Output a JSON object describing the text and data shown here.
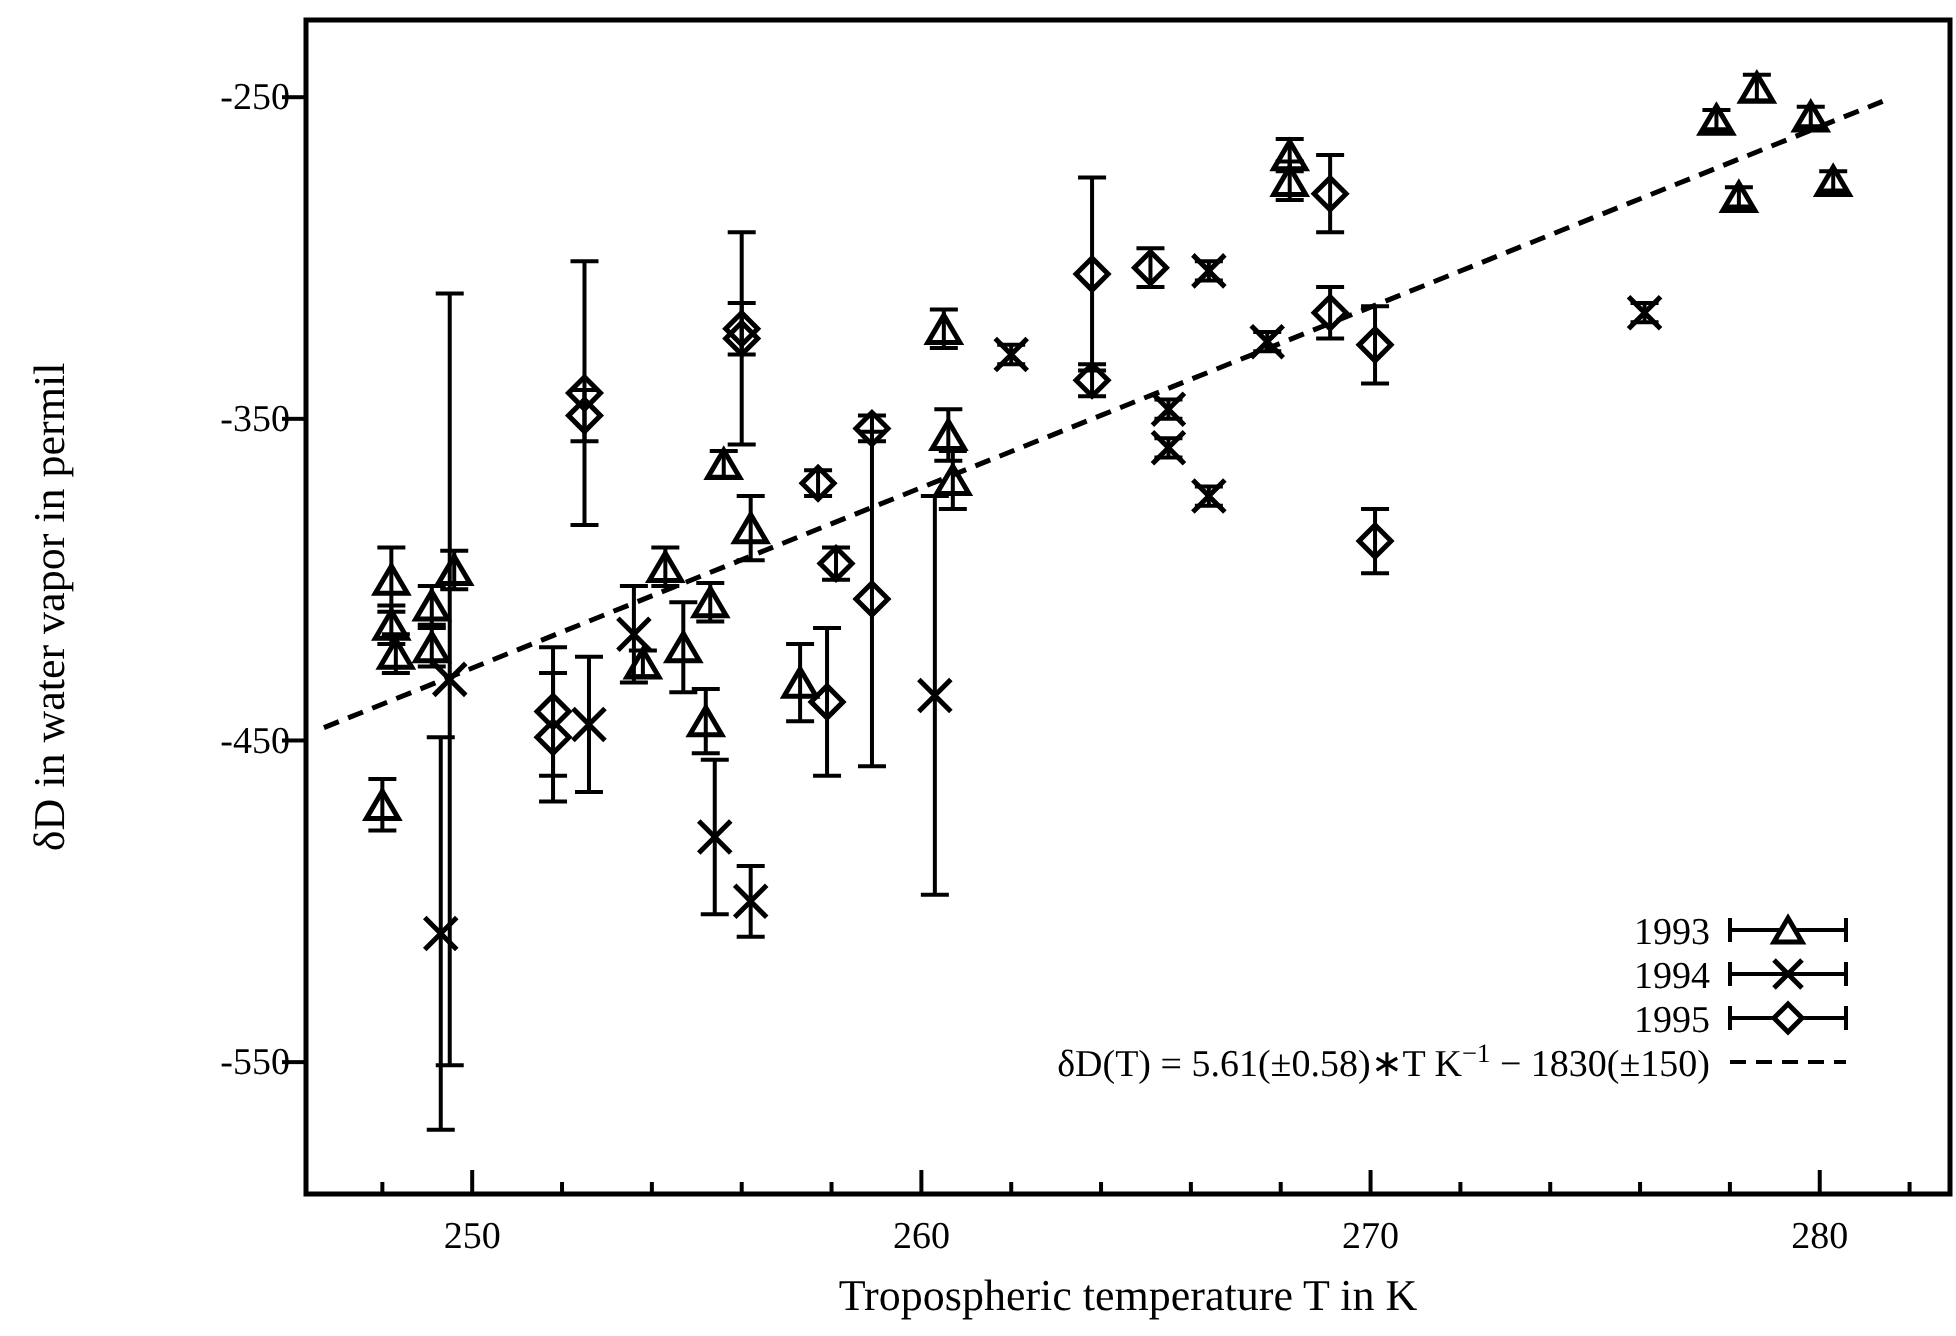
{
  "chart_data": {
    "type": "scatter",
    "xlabel": "Tropospheric temperature T in K",
    "ylabel": "δD in water vapor in permil",
    "xlim": [
      246.3,
      282.9
    ],
    "ylim": [
      -591,
      -226
    ],
    "xticks": [
      {
        "value": 248,
        "label": null
      },
      250,
      {
        "value": 252,
        "label": null
      },
      {
        "value": 254,
        "label": null
      },
      {
        "value": 256,
        "label": null
      },
      {
        "value": 258,
        "label": null
      },
      260,
      {
        "value": 262,
        "label": null
      },
      {
        "value": 264,
        "label": null
      },
      {
        "value": 266,
        "label": null
      },
      {
        "value": 268,
        "label": null
      },
      270,
      {
        "value": 272,
        "label": null
      },
      {
        "value": 274,
        "label": null
      },
      {
        "value": 276,
        "label": null
      },
      {
        "value": 278,
        "label": null
      },
      280,
      {
        "value": 282,
        "label": null
      }
    ],
    "yticks": [
      -250,
      -350,
      -450,
      -550
    ],
    "legend": "bottom right",
    "series": [
      {
        "name": "1993",
        "color": "#000000",
        "marker": "triangle",
        "x": [
          248.2,
          248.2,
          248.3,
          248.0,
          249.1,
          249.1,
          249.6,
          254.3,
          253.8,
          254.7,
          255.3,
          255.2,
          257.3,
          255.6,
          256.2,
          260.5,
          260.6,
          260.7,
          268.2,
          268.2,
          277.7,
          278.6,
          279.8,
          278.2,
          280.3
        ],
        "values": [
          -400,
          -414,
          -423,
          -470,
          -408,
          -421,
          -397,
          -396,
          -426,
          -421,
          -407,
          -444,
          -432,
          -364,
          -384,
          -322,
          -355,
          -369,
          -268,
          -276,
          -257,
          -247,
          -256,
          -281,
          -276
        ],
        "errors": [
          10,
          6,
          6,
          8,
          6,
          6,
          6,
          6,
          4,
          14,
          6,
          10,
          12,
          4,
          10,
          6,
          8,
          9,
          5,
          6,
          3,
          4,
          3,
          3,
          3
        ]
      },
      {
        "name": "1994",
        "color": "#000000",
        "marker": "cross",
        "x": [
          249.5,
          249.3,
          252.6,
          253.6,
          255.4,
          256.2,
          260.3,
          262.0,
          265.5,
          265.5,
          266.4,
          266.4,
          267.7,
          276.1
        ],
        "values": [
          -431,
          -510,
          -445,
          -417,
          -480,
          -500,
          -436,
          -330,
          -347,
          -359,
          -374,
          -304,
          -326,
          -317
        ],
        "errors": [
          120,
          61,
          21,
          15,
          24,
          11,
          62,
          3,
          3,
          3,
          3,
          3,
          3,
          3
        ]
      },
      {
        "name": "1995",
        "color": "#000000",
        "marker": "diamond",
        "x": [
          251.8,
          251.8,
          257.9,
          252.5,
          252.5,
          256.0,
          256.0,
          257.7,
          258.1,
          258.9,
          258.9,
          263.8,
          263.8,
          265.1,
          269.1,
          269.1,
          270.1,
          270.1
        ],
        "values": [
          -441,
          -449,
          -438,
          -342,
          -349,
          -322,
          -325,
          -370,
          -395,
          -353,
          -406,
          -305,
          -338,
          -303,
          -280,
          -317,
          -327,
          -388
        ],
        "errors": [
          20,
          20,
          23,
          41,
          8,
          8,
          33,
          4,
          5,
          4,
          52,
          30,
          5,
          6,
          12,
          8,
          12,
          10
        ]
      },
      {
        "name": "δD(T) = 5.61(±0.58)∗T K$^{−1}$ − 1830(±150)",
        "type": "line",
        "color": "#000000",
        "line_style": "dashed",
        "marker": "none",
        "x": [
          246.7,
          281.4
        ],
        "values": [
          -446.0,
          -251.3
        ]
      }
    ]
  }
}
